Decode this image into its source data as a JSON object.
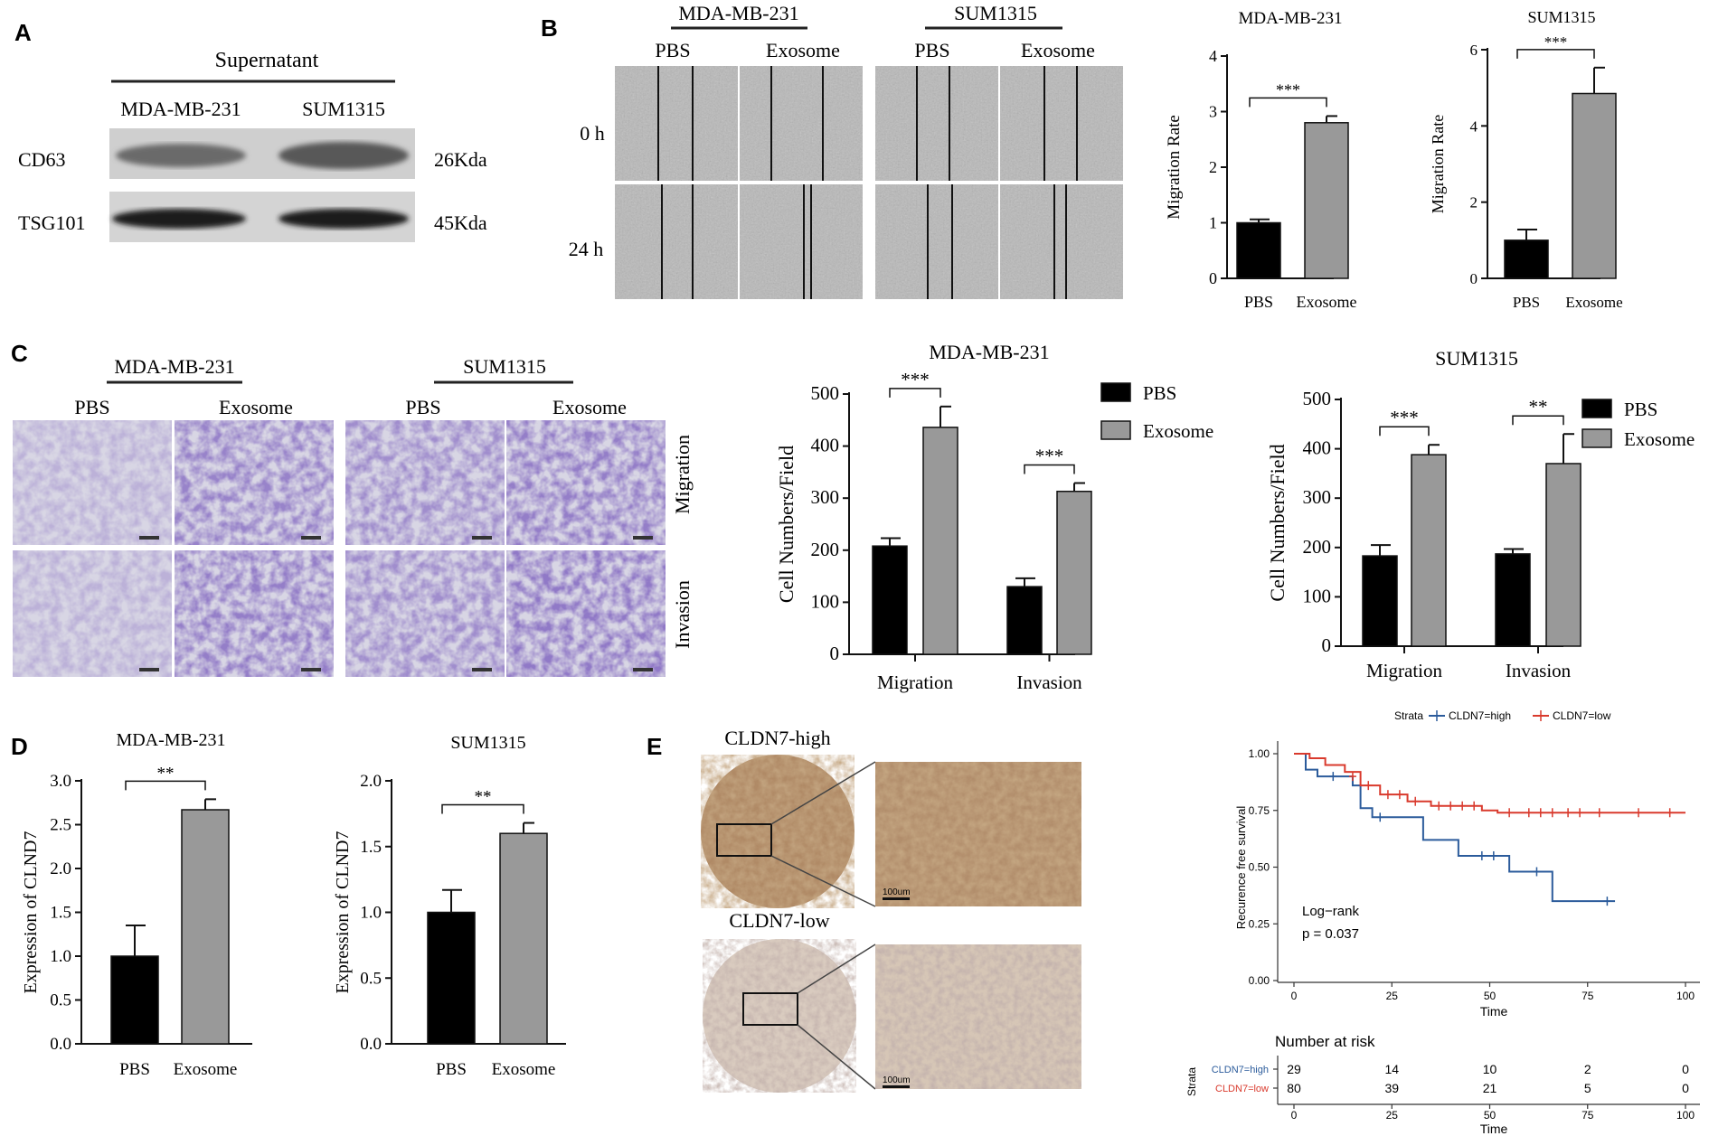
{
  "panels": {
    "A": "A",
    "B": "B",
    "C": "C",
    "D": "D",
    "E": "E"
  },
  "western": {
    "header": "Supernatant",
    "lanes": [
      "MDA-MB-231",
      "SUM1315"
    ],
    "bands": [
      {
        "name": "CD63",
        "size": "26Kda"
      },
      {
        "name": "TSG101",
        "size": "45Kda"
      }
    ]
  },
  "wound": {
    "cells": [
      "MDA-MB-231",
      "SUM1315"
    ],
    "conditions": [
      "PBS",
      "Exosome"
    ],
    "times": [
      "0 h",
      "24 h"
    ]
  },
  "transwell": {
    "cells": [
      "MDA-MB-231",
      "SUM1315"
    ],
    "conditions": [
      "PBS",
      "Exosome"
    ],
    "rows": [
      "Migration",
      "Invasion"
    ]
  },
  "ihc": {
    "high_label": "CLDN7-high",
    "low_label": "CLDN7-low",
    "scale": "100um"
  },
  "chart_data": [
    {
      "id": "B1",
      "type": "bar",
      "title": "MDA-MB-231",
      "categories": [
        "PBS",
        "Exosome"
      ],
      "values": [
        1.0,
        2.8
      ],
      "errors": [
        0.06,
        0.12
      ],
      "ylabel": "Migration Rate",
      "ylim": [
        0,
        4
      ],
      "yticks": [
        "0",
        "1",
        "2",
        "3",
        "4"
      ],
      "sig": "***",
      "colors": [
        "#000000",
        "#999999"
      ]
    },
    {
      "id": "B2",
      "type": "bar",
      "title": "SUM1315",
      "categories": [
        "PBS",
        "Exosome"
      ],
      "values": [
        1.0,
        4.85
      ],
      "errors": [
        0.28,
        0.68
      ],
      "ylabel": "Migration Rate",
      "ylim": [
        0,
        6
      ],
      "yticks": [
        "0",
        "2",
        "4",
        "6"
      ],
      "sig": "***",
      "colors": [
        "#000000",
        "#999999"
      ]
    },
    {
      "id": "C1",
      "type": "bar",
      "title": "MDA-MB-231",
      "categories": [
        "Migration",
        "Invasion"
      ],
      "series": [
        {
          "name": "PBS",
          "values": [
            208,
            130
          ],
          "errors": [
            15,
            16
          ]
        },
        {
          "name": "Exosome",
          "values": [
            436,
            313
          ],
          "errors": [
            40,
            16
          ]
        }
      ],
      "ylabel": "Cell Numbers/Field",
      "ylim": [
        0,
        500
      ],
      "yticks": [
        "0",
        "100",
        "200",
        "300",
        "400",
        "500"
      ],
      "sig": [
        "***",
        "***"
      ],
      "legend": "top-right",
      "colors": [
        "#000000",
        "#999999"
      ]
    },
    {
      "id": "C2",
      "type": "bar",
      "title": "SUM1315",
      "categories": [
        "Migration",
        "Invasion"
      ],
      "series": [
        {
          "name": "PBS",
          "values": [
            183,
            187
          ],
          "errors": [
            22,
            10
          ]
        },
        {
          "name": "Exosome",
          "values": [
            388,
            370
          ],
          "errors": [
            20,
            60
          ]
        }
      ],
      "ylabel": "Cell Numbers/Field",
      "ylim": [
        0,
        500
      ],
      "yticks": [
        "0",
        "100",
        "200",
        "300",
        "400",
        "500"
      ],
      "sig": [
        "***",
        "**"
      ],
      "legend": "top-right",
      "colors": [
        "#000000",
        "#999999"
      ]
    },
    {
      "id": "D1",
      "type": "bar",
      "title": "MDA-MB-231",
      "categories": [
        "PBS",
        "Exosome"
      ],
      "values": [
        1.0,
        2.67
      ],
      "errors": [
        0.35,
        0.12
      ],
      "ylabel": "Expression of CLND7",
      "ylim": [
        0,
        3
      ],
      "yticks": [
        "0.0",
        "0.5",
        "1.0",
        "1.5",
        "2.0",
        "2.5",
        "3.0"
      ],
      "sig": "**",
      "colors": [
        "#000000",
        "#999999"
      ]
    },
    {
      "id": "D2",
      "type": "bar",
      "title": "SUM1315",
      "categories": [
        "PBS",
        "Exosome"
      ],
      "values": [
        1.0,
        1.6
      ],
      "errors": [
        0.17,
        0.08
      ],
      "ylabel": "Expression of CLND7",
      "ylim": [
        0,
        2
      ],
      "yticks": [
        "0.0",
        "0.5",
        "1.0",
        "1.5",
        "2.0"
      ],
      "sig": "**",
      "colors": [
        "#000000",
        "#999999"
      ]
    },
    {
      "id": "E",
      "type": "line",
      "strata_label": "Strata",
      "xlabel": "Time",
      "ylabel": "Recurence free survival",
      "xlim": [
        0,
        100
      ],
      "ylim": [
        0,
        1
      ],
      "xticks": [
        "0",
        "25",
        "50",
        "75",
        "100"
      ],
      "yticks": [
        "0.00",
        "0.25",
        "0.50",
        "0.75",
        "1.00"
      ],
      "annotation": [
        "Log−rank",
        "p = 0.037"
      ],
      "series": [
        {
          "name": "CLDN7=high",
          "color": "#2b5b9b",
          "x": [
            0,
            3,
            6,
            15,
            17,
            20,
            24,
            33,
            42,
            55,
            66,
            82
          ],
          "y": [
            1.0,
            0.93,
            0.9,
            0.86,
            0.76,
            0.72,
            0.72,
            0.62,
            0.55,
            0.48,
            0.35,
            0.35
          ],
          "censor": [
            [
              10,
              0.9
            ],
            [
              22,
              0.72
            ],
            [
              48,
              0.55
            ],
            [
              51,
              0.55
            ],
            [
              62,
              0.48
            ],
            [
              80,
              0.35
            ]
          ]
        },
        {
          "name": "CLDN7=low",
          "color": "#d93a2d",
          "x": [
            0,
            4,
            8,
            13,
            17,
            22,
            29,
            35,
            40,
            48,
            52,
            60,
            80,
            100
          ],
          "y": [
            1.0,
            0.98,
            0.95,
            0.92,
            0.86,
            0.82,
            0.79,
            0.77,
            0.77,
            0.75,
            0.74,
            0.74,
            0.74,
            0.74
          ],
          "censor": [
            [
              15,
              0.9
            ],
            [
              19,
              0.86
            ],
            [
              24,
              0.82
            ],
            [
              27,
              0.82
            ],
            [
              31,
              0.79
            ],
            [
              37,
              0.77
            ],
            [
              40,
              0.77
            ],
            [
              43,
              0.77
            ],
            [
              46,
              0.77
            ],
            [
              55,
              0.74
            ],
            [
              60,
              0.74
            ],
            [
              63,
              0.74
            ],
            [
              66,
              0.74
            ],
            [
              70,
              0.74
            ],
            [
              73,
              0.74
            ],
            [
              78,
              0.74
            ],
            [
              88,
              0.74
            ],
            [
              96,
              0.74
            ]
          ]
        }
      ],
      "risk": {
        "title": "Number at risk",
        "strata_label": "Strata",
        "xlabel": "Time",
        "rows": [
          {
            "name": "CLDN7=high",
            "color": "#2b5b9b",
            "values": [
              "29",
              "14",
              "10",
              "2",
              "0"
            ]
          },
          {
            "name": "CLDN7=low",
            "color": "#d93a2d",
            "values": [
              "80",
              "39",
              "21",
              "5",
              "0"
            ]
          }
        ]
      }
    }
  ]
}
